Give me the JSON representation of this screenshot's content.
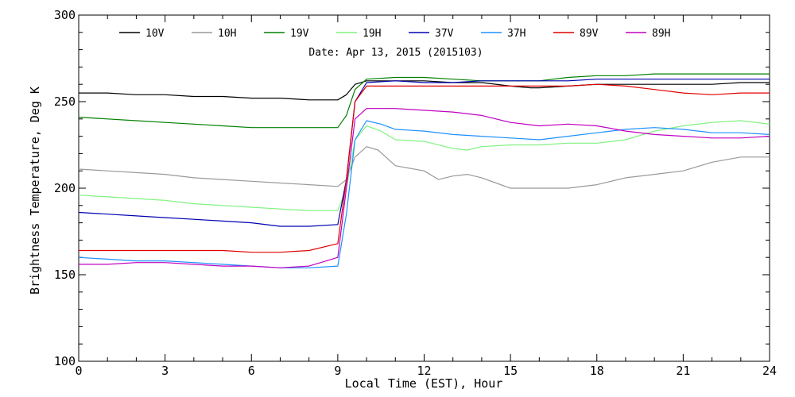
{
  "chart_data": {
    "type": "line",
    "subtitle": "Date: Apr 13, 2015 (2015103)",
    "xlabel": "Local Time (EST), Hour",
    "ylabel": "Brightness Temperature, Deg K",
    "xlim": [
      0,
      24
    ],
    "ylim": [
      100,
      300
    ],
    "xticks": [
      0,
      3,
      6,
      9,
      12,
      15,
      18,
      21,
      24
    ],
    "yticks": [
      100,
      150,
      200,
      250,
      300
    ],
    "grid": false,
    "legend_position": "top",
    "series": [
      {
        "name": "10V",
        "color": "#000000",
        "points": [
          [
            0,
            255
          ],
          [
            1,
            255
          ],
          [
            2,
            254
          ],
          [
            3,
            254
          ],
          [
            4,
            253
          ],
          [
            5,
            253
          ],
          [
            6,
            252
          ],
          [
            7,
            252
          ],
          [
            8,
            251
          ],
          [
            9,
            251
          ],
          [
            9.3,
            254
          ],
          [
            9.6,
            260
          ],
          [
            10,
            262
          ],
          [
            11,
            262
          ],
          [
            12,
            262
          ],
          [
            13,
            261
          ],
          [
            14,
            261
          ],
          [
            15,
            259
          ],
          [
            15.7,
            258
          ],
          [
            16,
            258
          ],
          [
            17,
            259
          ],
          [
            18,
            260
          ],
          [
            19,
            260
          ],
          [
            20,
            260
          ],
          [
            21,
            260
          ],
          [
            22,
            260
          ],
          [
            23,
            261
          ],
          [
            24,
            261
          ]
        ]
      },
      {
        "name": "10H",
        "color": "#999999",
        "points": [
          [
            0,
            211
          ],
          [
            1,
            210
          ],
          [
            2,
            209
          ],
          [
            3,
            208
          ],
          [
            4,
            206
          ],
          [
            5,
            205
          ],
          [
            6,
            204
          ],
          [
            7,
            203
          ],
          [
            8,
            202
          ],
          [
            9,
            201
          ],
          [
            9.3,
            205
          ],
          [
            9.6,
            218
          ],
          [
            10,
            224
          ],
          [
            10.4,
            222
          ],
          [
            11,
            213
          ],
          [
            12,
            210
          ],
          [
            12.5,
            205
          ],
          [
            13,
            207
          ],
          [
            13.5,
            208
          ],
          [
            14,
            206
          ],
          [
            14.5,
            203
          ],
          [
            15,
            200
          ],
          [
            15.5,
            200
          ],
          [
            16,
            200
          ],
          [
            17,
            200
          ],
          [
            18,
            202
          ],
          [
            19,
            206
          ],
          [
            20,
            208
          ],
          [
            21,
            210
          ],
          [
            22,
            215
          ],
          [
            23,
            218
          ],
          [
            24,
            218
          ]
        ]
      },
      {
        "name": "19V",
        "color": "#008000",
        "points": [
          [
            0,
            241
          ],
          [
            1,
            240
          ],
          [
            2,
            239
          ],
          [
            3,
            238
          ],
          [
            4,
            237
          ],
          [
            5,
            236
          ],
          [
            6,
            235
          ],
          [
            7,
            235
          ],
          [
            8,
            235
          ],
          [
            9,
            235
          ],
          [
            9.3,
            242
          ],
          [
            9.6,
            257
          ],
          [
            10,
            263
          ],
          [
            11,
            264
          ],
          [
            12,
            264
          ],
          [
            13,
            263
          ],
          [
            14,
            262
          ],
          [
            15,
            262
          ],
          [
            16,
            262
          ],
          [
            17,
            264
          ],
          [
            18,
            265
          ],
          [
            19,
            265
          ],
          [
            20,
            266
          ],
          [
            21,
            266
          ],
          [
            22,
            266
          ],
          [
            23,
            266
          ],
          [
            24,
            266
          ]
        ]
      },
      {
        "name": "19H",
        "color": "#7ff27f",
        "points": [
          [
            0,
            196
          ],
          [
            1,
            195
          ],
          [
            2,
            194
          ],
          [
            3,
            193
          ],
          [
            4,
            191
          ],
          [
            5,
            190
          ],
          [
            6,
            189
          ],
          [
            7,
            188
          ],
          [
            8,
            187
          ],
          [
            9,
            187
          ],
          [
            9.3,
            200
          ],
          [
            9.6,
            228
          ],
          [
            10,
            236
          ],
          [
            10.5,
            233
          ],
          [
            11,
            228
          ],
          [
            12,
            227
          ],
          [
            13,
            223
          ],
          [
            13.5,
            222
          ],
          [
            14,
            224
          ],
          [
            15,
            225
          ],
          [
            16,
            225
          ],
          [
            17,
            226
          ],
          [
            18,
            226
          ],
          [
            19,
            228
          ],
          [
            20,
            233
          ],
          [
            21,
            236
          ],
          [
            22,
            238
          ],
          [
            23,
            239
          ],
          [
            24,
            237
          ]
        ]
      },
      {
        "name": "37V",
        "color": "#0000b0",
        "points": [
          [
            0,
            186
          ],
          [
            1,
            185
          ],
          [
            2,
            184
          ],
          [
            3,
            183
          ],
          [
            4,
            182
          ],
          [
            5,
            181
          ],
          [
            6,
            180
          ],
          [
            7,
            178
          ],
          [
            8,
            178
          ],
          [
            9,
            179
          ],
          [
            9.3,
            205
          ],
          [
            9.6,
            250
          ],
          [
            10,
            261
          ],
          [
            11,
            262
          ],
          [
            12,
            261
          ],
          [
            13,
            261
          ],
          [
            14,
            262
          ],
          [
            15,
            262
          ],
          [
            16,
            262
          ],
          [
            17,
            262
          ],
          [
            18,
            263
          ],
          [
            19,
            263
          ],
          [
            20,
            263
          ],
          [
            21,
            263
          ],
          [
            22,
            263
          ],
          [
            23,
            263
          ],
          [
            24,
            263
          ]
        ]
      },
      {
        "name": "37H",
        "color": "#1e90ff",
        "points": [
          [
            0,
            160
          ],
          [
            1,
            159
          ],
          [
            2,
            158
          ],
          [
            3,
            158
          ],
          [
            4,
            157
          ],
          [
            5,
            156
          ],
          [
            6,
            155
          ],
          [
            7,
            154
          ],
          [
            8,
            154
          ],
          [
            9,
            155
          ],
          [
            9.3,
            185
          ],
          [
            9.6,
            228
          ],
          [
            10,
            239
          ],
          [
            10.5,
            237
          ],
          [
            11,
            234
          ],
          [
            12,
            233
          ],
          [
            13,
            231
          ],
          [
            14,
            230
          ],
          [
            15,
            229
          ],
          [
            16,
            228
          ],
          [
            17,
            230
          ],
          [
            18,
            232
          ],
          [
            19,
            234
          ],
          [
            20,
            235
          ],
          [
            21,
            234
          ],
          [
            22,
            232
          ],
          [
            23,
            232
          ],
          [
            24,
            231
          ]
        ]
      },
      {
        "name": "89V",
        "color": "#e00000",
        "points": [
          [
            0,
            164
          ],
          [
            1,
            164
          ],
          [
            2,
            164
          ],
          [
            3,
            164
          ],
          [
            4,
            164
          ],
          [
            5,
            164
          ],
          [
            6,
            163
          ],
          [
            7,
            163
          ],
          [
            8,
            164
          ],
          [
            9,
            168
          ],
          [
            9.3,
            205
          ],
          [
            9.6,
            250
          ],
          [
            10,
            259
          ],
          [
            11,
            259
          ],
          [
            12,
            259
          ],
          [
            13,
            259
          ],
          [
            14,
            259
          ],
          [
            15,
            259
          ],
          [
            16,
            259
          ],
          [
            17,
            259
          ],
          [
            18,
            260
          ],
          [
            19,
            259
          ],
          [
            20,
            257
          ],
          [
            21,
            255
          ],
          [
            22,
            254
          ],
          [
            23,
            255
          ],
          [
            24,
            255
          ]
        ]
      },
      {
        "name": "89H",
        "color": "#c000c0",
        "points": [
          [
            0,
            156
          ],
          [
            1,
            156
          ],
          [
            2,
            157
          ],
          [
            3,
            157
          ],
          [
            4,
            156
          ],
          [
            5,
            155
          ],
          [
            6,
            155
          ],
          [
            7,
            154
          ],
          [
            8,
            155
          ],
          [
            9,
            160
          ],
          [
            9.3,
            200
          ],
          [
            9.6,
            240
          ],
          [
            10,
            246
          ],
          [
            11,
            246
          ],
          [
            12,
            245
          ],
          [
            13,
            244
          ],
          [
            14,
            242
          ],
          [
            15,
            238
          ],
          [
            16,
            236
          ],
          [
            17,
            237
          ],
          [
            18,
            236
          ],
          [
            19,
            233
          ],
          [
            20,
            231
          ],
          [
            21,
            230
          ],
          [
            22,
            229
          ],
          [
            23,
            229
          ],
          [
            24,
            230
          ]
        ]
      }
    ]
  }
}
